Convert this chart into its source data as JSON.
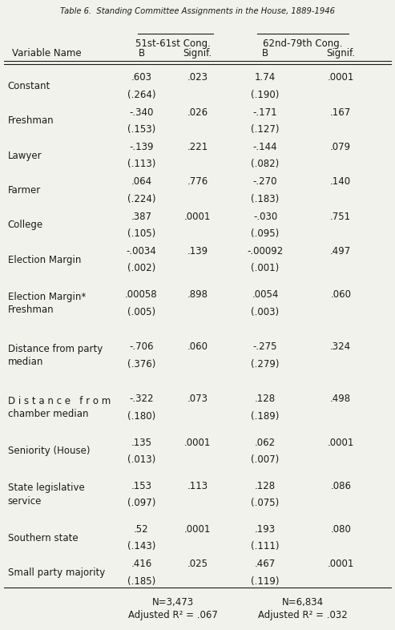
{
  "title": "Table 6.  Standing Committee Assignments in the House, 1889-1946",
  "col_header_group1": "51st-61st Cong.",
  "col_header_group2": "62nd-79th Cong.",
  "col_sub1": "B",
  "col_sub2": "Signif.",
  "col_sub3": "B",
  "col_sub4": "Signif.",
  "var_col_label": "Variable Name",
  "rows": [
    {
      "name": "Constant",
      "b1": ".603",
      "se1": "(.264)",
      "sig1": ".023",
      "b2": "1.74",
      "se2": "(.190)",
      "sig2": ".0001"
    },
    {
      "name": "Freshman",
      "b1": "-.340",
      "se1": "(.153)",
      "sig1": ".026",
      "b2": "-.171",
      "se2": "(.127)",
      "sig2": ".167"
    },
    {
      "name": "Lawyer",
      "b1": "-.139",
      "se1": "(.113)",
      "sig1": ".221",
      "b2": "-.144",
      "se2": "(.082)",
      "sig2": ".079"
    },
    {
      "name": "Farmer",
      "b1": ".064",
      "se1": "(.224)",
      "sig1": ".776",
      "b2": "-.270",
      "se2": "(.183)",
      "sig2": ".140"
    },
    {
      "name": "College",
      "b1": ".387",
      "se1": "(.105)",
      "sig1": ".0001",
      "b2": "-.030",
      "se2": "(.095)",
      "sig2": ".751"
    },
    {
      "name": "Election Margin",
      "b1": "-.0034",
      "se1": "(.002)",
      "sig1": ".139",
      "b2": "-.00092",
      "se2": "(.001)",
      "sig2": ".497"
    },
    {
      "name": "Election Margin*\nFreshman",
      "b1": ".00058",
      "se1": "(.005)",
      "sig1": ".898",
      "b2": ".0054",
      "se2": "(.003)",
      "sig2": ".060"
    },
    {
      "name": "Distance from party\nmedian",
      "b1": "-.706",
      "se1": "(.376)",
      "sig1": ".060",
      "b2": "-.275",
      "se2": "(.279)",
      "sig2": ".324"
    },
    {
      "name": "D i s t a n c e   f r o m\nchamber median",
      "b1": "-.322",
      "se1": "(.180)",
      "sig1": ".073",
      "b2": ".128",
      "se2": "(.189)",
      "sig2": ".498"
    },
    {
      "name": "Seniority (House)",
      "b1": ".135",
      "se1": "(.013)",
      "sig1": ".0001",
      "b2": ".062",
      "se2": "(.007)",
      "sig2": ".0001"
    },
    {
      "name": "State legislative\nservice",
      "b1": ".153",
      "se1": "(.097)",
      "sig1": ".113",
      "b2": ".128",
      "se2": "(.075)",
      "sig2": ".086"
    },
    {
      "name": "Southern state",
      "b1": ".52",
      "se1": "(.143)",
      "sig1": ".0001",
      "b2": ".193",
      "se2": "(.111)",
      "sig2": ".080"
    },
    {
      "name": "Small party majority",
      "b1": ".416",
      "se1": "(.185)",
      "sig1": ".025",
      "b2": ".467",
      "se2": "(.119)",
      "sig2": ".0001"
    }
  ],
  "footnote1_left": "N=3,473",
  "footnote2_left": "Adjusted R² = .067",
  "footnote1_right": "N=6,834",
  "footnote2_right": "Adjusted R² = .032",
  "bg_color": "#f2f2ed",
  "text_color": "#1a1a1a",
  "font_size": 8.5
}
